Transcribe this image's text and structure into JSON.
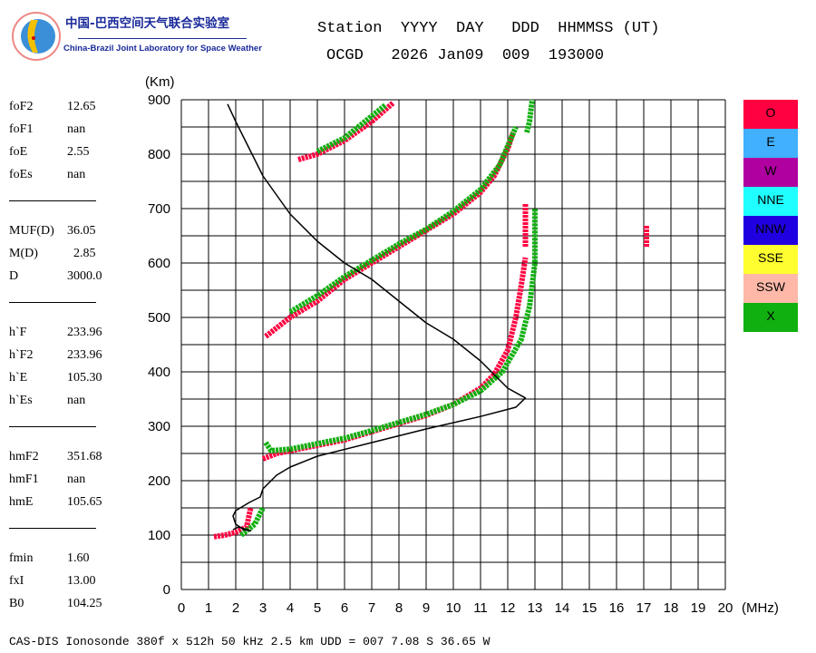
{
  "logo": {
    "title_cn": "中国-巴西空间天气联合实验室",
    "title_en": "China-Brazil Joint Laboratory for Space Weather"
  },
  "header": {
    "line1": "Station  YYYY  DAY   DDD  HHMMSS (UT)",
    "line2": "OCGD   2026 Jan09  009  193000"
  },
  "params": [
    [
      {
        "k": "foF2",
        "v": "12.65"
      },
      {
        "k": "foF1",
        "v": "nan"
      },
      {
        "k": "foE",
        "v": "2.55"
      },
      {
        "k": "foEs",
        "v": "nan"
      }
    ],
    [
      {
        "k": "MUF(D)",
        "v": "36.05"
      },
      {
        "k": "M(D)",
        "v": "  2.85"
      },
      {
        "k": "D",
        "v": "3000.0"
      }
    ],
    [
      {
        "k": "h`F",
        "v": "233.96"
      },
      {
        "k": "h`F2",
        "v": "233.96"
      },
      {
        "k": "h`E",
        "v": "105.30"
      },
      {
        "k": "h`Es",
        "v": "nan"
      }
    ],
    [
      {
        "k": "hmF2",
        "v": "351.68"
      },
      {
        "k": "hmF1",
        "v": "nan"
      },
      {
        "k": "hmE",
        "v": "105.65"
      }
    ],
    [
      {
        "k": "fmin",
        "v": "1.60"
      },
      {
        "k": "fxI",
        "v": "13.00"
      },
      {
        "k": "B0",
        "v": "104.25"
      }
    ]
  ],
  "legend": [
    {
      "label": "O",
      "color": "#ff0040"
    },
    {
      "label": "E",
      "color": "#40b0ff"
    },
    {
      "label": "W",
      "color": "#b000a0"
    },
    {
      "label": "NNE",
      "color": "#20ffff"
    },
    {
      "label": "NNW",
      "color": "#2000e0"
    },
    {
      "label": "SSE",
      "color": "#ffff30"
    },
    {
      "label": "SSW",
      "color": "#ffb8a8"
    },
    {
      "label": "X",
      "color": "#10b010"
    }
  ],
  "footer": "CAS-DIS Ionosonde 380f x 512h 50 kHz 2.5 km UDD = 007 7.08 S 36.65 W",
  "chart_data": {
    "type": "scatter",
    "xlabel": "(MHz)",
    "ylabel": "(Km)",
    "xlim": [
      0,
      20
    ],
    "ylim": [
      0,
      900
    ],
    "xticks": [
      0,
      1,
      2,
      3,
      4,
      5,
      6,
      7,
      8,
      9,
      10,
      11,
      12,
      13,
      14,
      15,
      16,
      17,
      18,
      19,
      20
    ],
    "yticks": [
      0,
      100,
      200,
      300,
      400,
      500,
      600,
      700,
      800,
      900
    ],
    "grid": true,
    "series": [
      {
        "name": "O F trace",
        "color": "#ff0040",
        "points": [
          [
            3.0,
            240
          ],
          [
            3.5,
            250
          ],
          [
            4,
            255
          ],
          [
            5,
            265
          ],
          [
            6,
            275
          ],
          [
            7,
            290
          ],
          [
            8,
            305
          ],
          [
            9,
            320
          ],
          [
            10,
            340
          ],
          [
            11,
            370
          ],
          [
            11.5,
            395
          ],
          [
            12,
            440
          ],
          [
            12.3,
            500
          ],
          [
            12.5,
            560
          ],
          [
            12.65,
            610
          ]
        ]
      },
      {
        "name": "O E trace",
        "color": "#ff0040",
        "points": [
          [
            1.2,
            97
          ],
          [
            1.6,
            100
          ],
          [
            2,
            105
          ],
          [
            2.4,
            115
          ],
          [
            2.55,
            150
          ]
        ]
      },
      {
        "name": "X F trace",
        "color": "#10b010",
        "points": [
          [
            3.1,
            270
          ],
          [
            3.3,
            255
          ],
          [
            4,
            258
          ],
          [
            5,
            268
          ],
          [
            6,
            278
          ],
          [
            7,
            292
          ],
          [
            8,
            307
          ],
          [
            9,
            322
          ],
          [
            10,
            340
          ],
          [
            11,
            365
          ],
          [
            11.8,
            400
          ],
          [
            12.5,
            460
          ],
          [
            12.8,
            520
          ],
          [
            13,
            600
          ],
          [
            13,
            700
          ]
        ]
      },
      {
        "name": "X E trace",
        "color": "#10b010",
        "points": [
          [
            2.2,
            100
          ],
          [
            2.7,
            120
          ],
          [
            3,
            150
          ]
        ]
      },
      {
        "name": "O 2nd hop",
        "color": "#ff0040",
        "points": [
          [
            3.1,
            465
          ],
          [
            4,
            500
          ],
          [
            5,
            530
          ],
          [
            6,
            570
          ],
          [
            7,
            600
          ],
          [
            8,
            630
          ],
          [
            9,
            660
          ],
          [
            10,
            690
          ],
          [
            10.5,
            710
          ],
          [
            11,
            730
          ],
          [
            11.5,
            760
          ],
          [
            12,
            810
          ],
          [
            12.2,
            840
          ]
        ]
      },
      {
        "name": "X 2nd hop",
        "color": "#10b010",
        "points": [
          [
            4,
            510
          ],
          [
            5,
            540
          ],
          [
            6,
            575
          ],
          [
            7,
            605
          ],
          [
            8,
            635
          ],
          [
            9,
            662
          ],
          [
            10,
            695
          ],
          [
            11,
            735
          ],
          [
            11.7,
            780
          ],
          [
            12.3,
            850
          ]
        ]
      },
      {
        "name": "O 3rd hop",
        "color": "#ff0040",
        "points": [
          [
            4.3,
            790
          ],
          [
            5,
            800
          ],
          [
            6,
            825
          ],
          [
            7,
            860
          ],
          [
            7.8,
            895
          ]
        ]
      },
      {
        "name": "X 3rd hop",
        "color": "#10b010",
        "points": [
          [
            5,
            805
          ],
          [
            6,
            830
          ],
          [
            7,
            870
          ],
          [
            7.5,
            890
          ]
        ]
      },
      {
        "name": "O spur 1",
        "color": "#ff0040",
        "points": [
          [
            12.65,
            630
          ],
          [
            12.65,
            710
          ]
        ]
      },
      {
        "name": "O spur 2",
        "color": "#ff0040",
        "points": [
          [
            17.1,
            630
          ],
          [
            17.1,
            670
          ]
        ]
      },
      {
        "name": "X spur",
        "color": "#10b010",
        "points": [
          [
            12.7,
            840
          ],
          [
            12.8,
            860
          ],
          [
            12.9,
            900
          ]
        ]
      },
      {
        "name": "Profile",
        "color": "#000000",
        "points": [
          [
            1.7,
            892
          ],
          [
            2,
            860
          ],
          [
            3,
            760
          ],
          [
            4,
            690
          ],
          [
            5,
            640
          ],
          [
            6,
            600
          ],
          [
            7,
            570
          ],
          [
            8,
            530
          ],
          [
            9,
            490
          ],
          [
            10,
            460
          ],
          [
            11,
            420
          ],
          [
            12,
            370
          ],
          [
            12.65,
            352
          ],
          [
            12.3,
            335
          ],
          [
            11,
            318
          ],
          [
            9,
            295
          ],
          [
            7,
            270
          ],
          [
            5,
            245
          ],
          [
            4,
            225
          ],
          [
            3.5,
            210
          ],
          [
            3,
            185
          ],
          [
            2.9,
            170
          ],
          [
            2.5,
            160
          ],
          [
            2,
            145
          ],
          [
            1.9,
            135
          ],
          [
            2,
            120
          ],
          [
            2.3,
            110
          ],
          [
            2.55,
            108
          ],
          [
            2.1,
            115
          ],
          [
            1.9,
            110
          ]
        ]
      }
    ]
  }
}
